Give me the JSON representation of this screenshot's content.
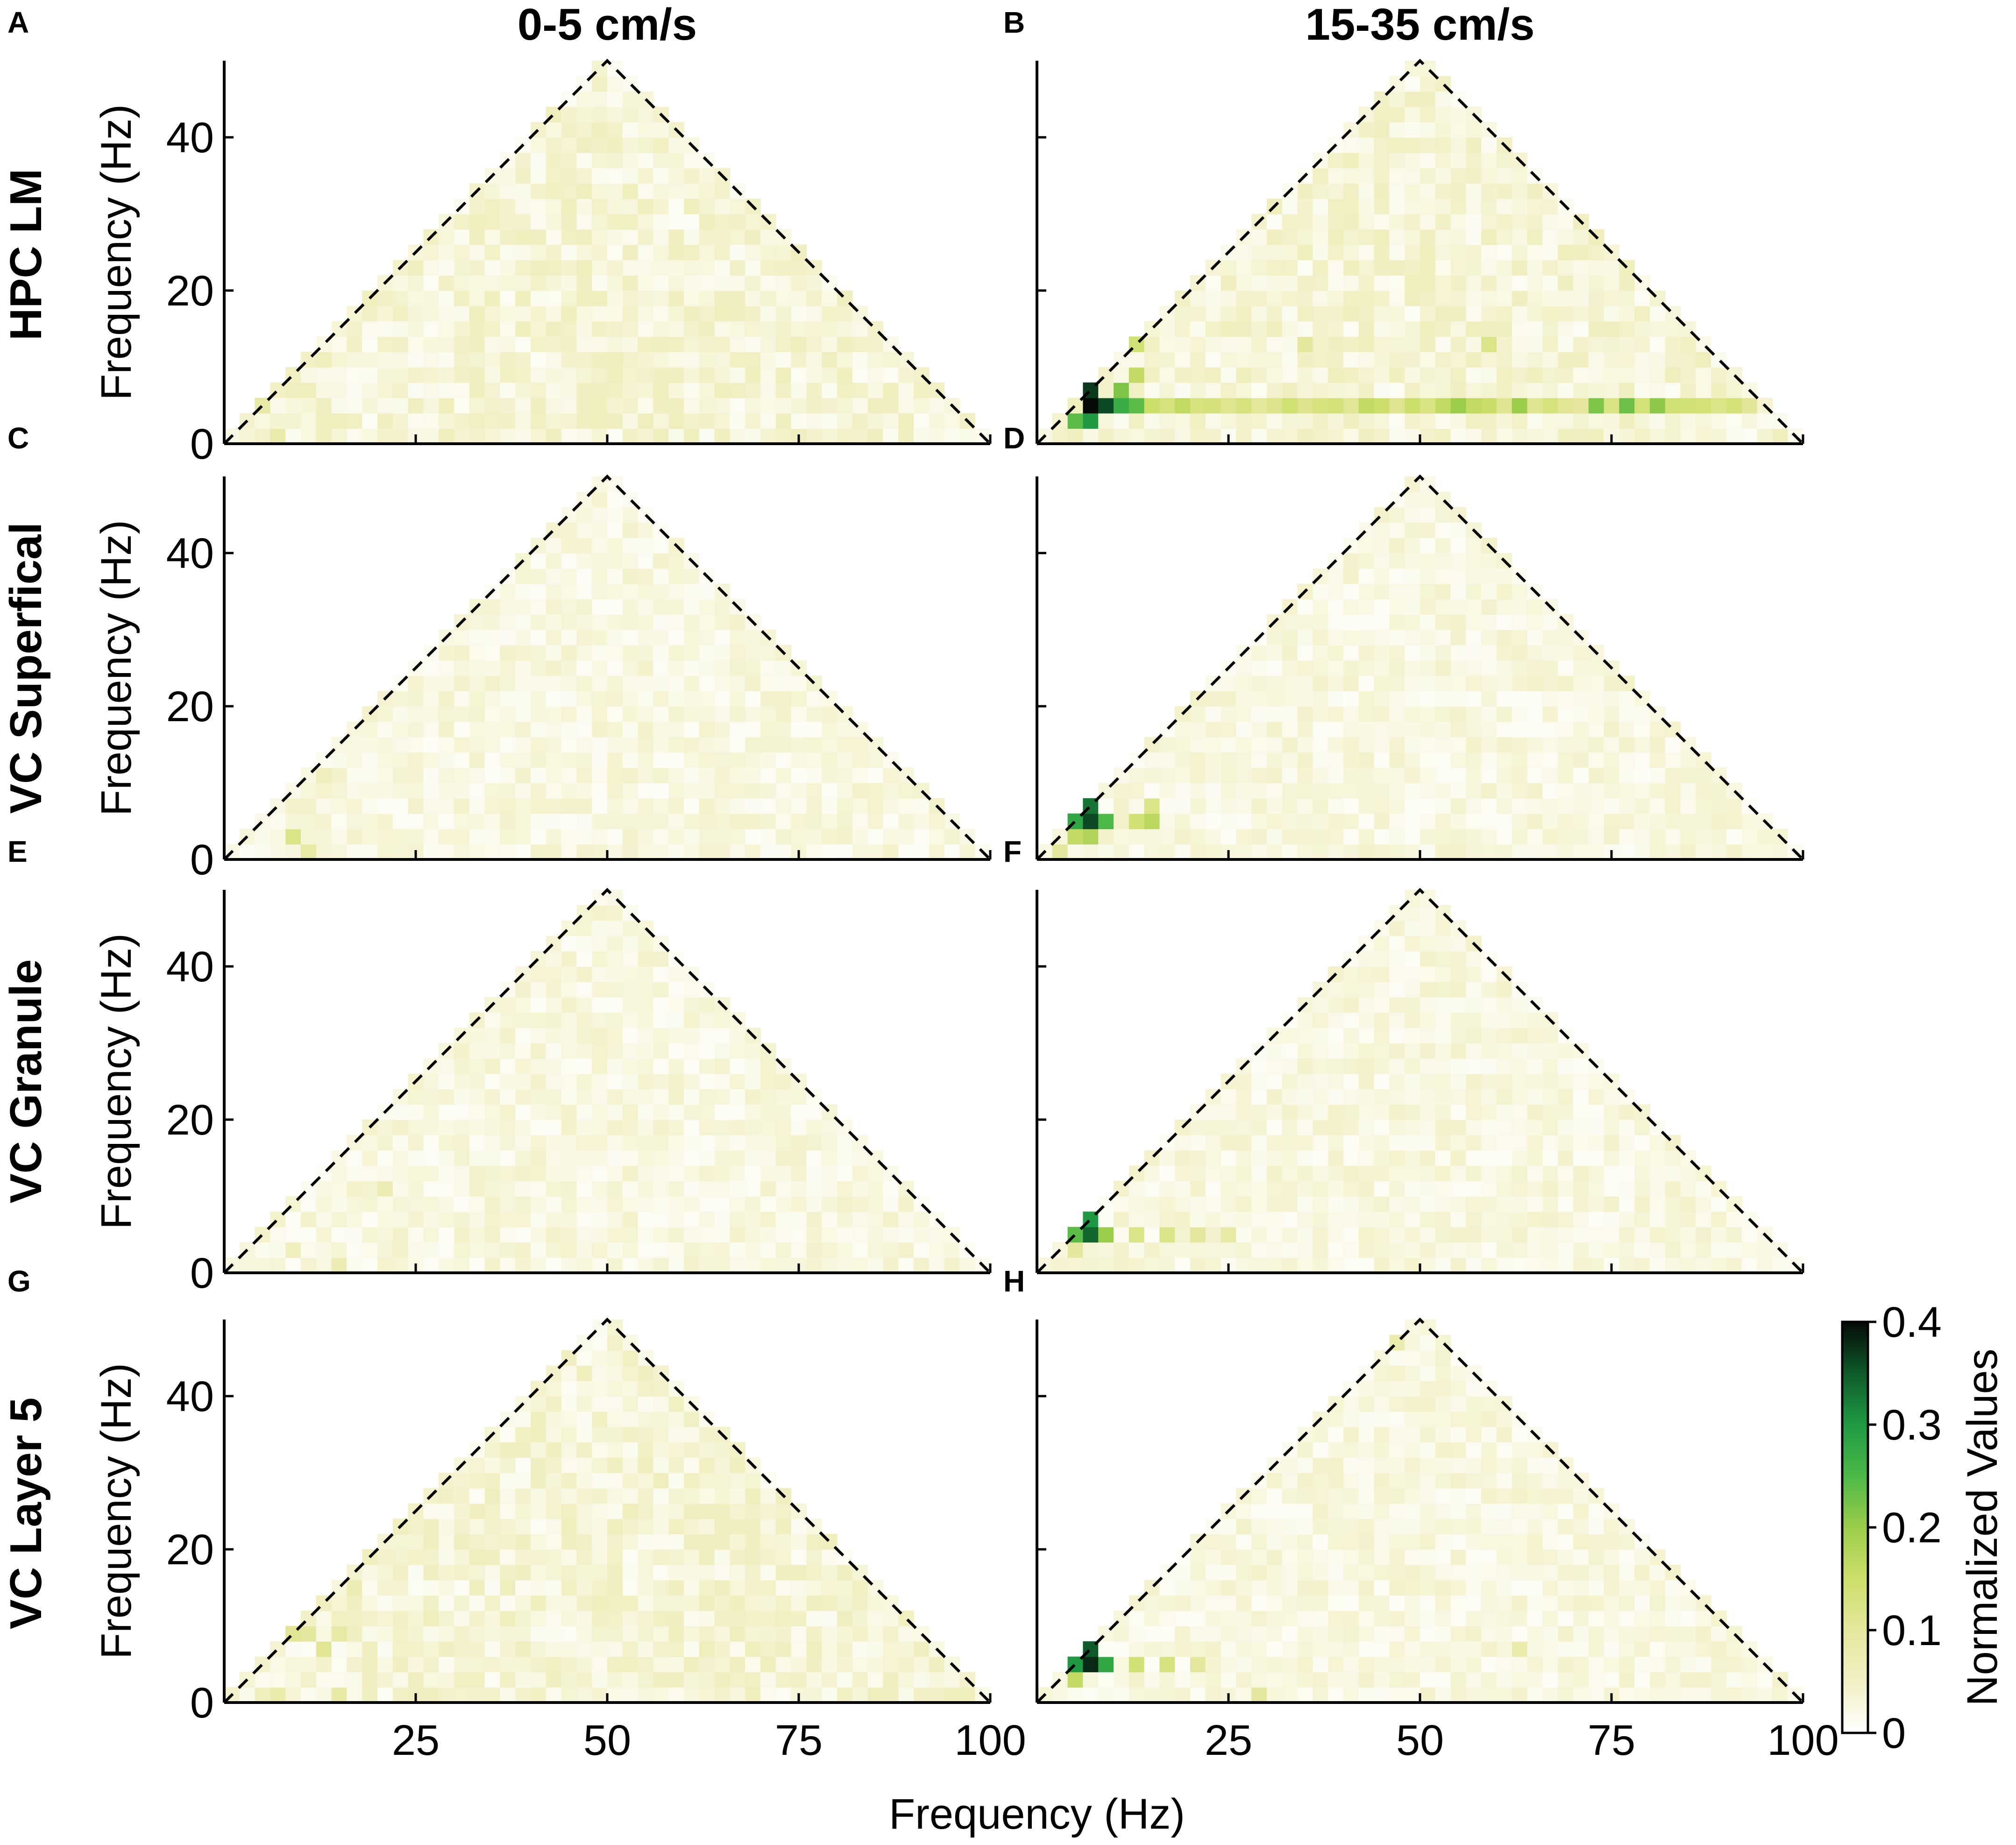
{
  "figure": {
    "column_titles": [
      "0-5 cm/s",
      "15-35 cm/s"
    ],
    "row_titles": [
      "HPC LM",
      "VC Superfical",
      "VC Granule",
      "VC Layer 5"
    ],
    "x_axis_label": "Frequency (Hz)",
    "y_axis_label": "Frequency (Hz)"
  },
  "colorbar": {
    "label": "Normalized Values",
    "ticks": [
      "0",
      "0.1",
      "0.2",
      "0.3",
      "0.4"
    ],
    "range": [
      0,
      0.4
    ],
    "colors": [
      "#ffffff",
      "#f2f0c4",
      "#e6e79e",
      "#cddf6a",
      "#9ccd4a",
      "#4cb848",
      "#1f9a43",
      "#0f5a2a",
      "#050a06"
    ]
  },
  "chart_data": [
    {
      "type": "heatmap",
      "panel": "A",
      "row": "HPC LM",
      "speed": "0-5 cm/s",
      "xlim": [
        0,
        100
      ],
      "ylim": [
        0,
        50
      ],
      "xticks": [
        25,
        50,
        75,
        100
      ],
      "yticks": [
        0,
        20,
        40
      ],
      "x_tick_labels_visible": false,
      "baseline": 0.04,
      "hotspots": [
        {
          "x": 5,
          "y": 5,
          "value": 0.09
        },
        {
          "x": 7,
          "y": 1,
          "value": 0.08
        },
        {
          "x": 15,
          "y": 3,
          "value": 0.06
        },
        {
          "x": 48,
          "y": 42,
          "value": 0.06
        }
      ]
    },
    {
      "type": "heatmap",
      "panel": "B",
      "row": "HPC LM",
      "speed": "15-35 cm/s",
      "xlim": [
        0,
        100
      ],
      "ylim": [
        0,
        50
      ],
      "xticks": [
        25,
        50,
        75,
        100
      ],
      "yticks": [
        0,
        20,
        40
      ],
      "x_tick_labels_visible": false,
      "baseline": 0.04,
      "hotspots": [
        {
          "x": 7,
          "y": 5,
          "value": 0.4
        },
        {
          "x": 7,
          "y": 7,
          "value": 0.37
        },
        {
          "x": 9,
          "y": 5,
          "value": 0.36
        },
        {
          "x": 7,
          "y": 3,
          "value": 0.3
        },
        {
          "x": 5,
          "y": 3,
          "value": 0.24
        },
        {
          "x": 11,
          "y": 5,
          "value": 0.27
        },
        {
          "x": 13,
          "y": 5,
          "value": 0.24
        },
        {
          "x": 11,
          "y": 7,
          "value": 0.22
        },
        {
          "x": 13,
          "y": 9,
          "value": 0.16
        },
        {
          "x": 13,
          "y": 13,
          "value": 0.14
        },
        {
          "x": 13,
          "y": 15,
          "value": 0.14
        },
        {
          "x": 43,
          "y": 5,
          "value": 0.16
        },
        {
          "x": 55,
          "y": 5,
          "value": 0.2
        },
        {
          "x": 63,
          "y": 5,
          "value": 0.2
        },
        {
          "x": 73,
          "y": 5,
          "value": 0.22
        },
        {
          "x": 77,
          "y": 5,
          "value": 0.23
        },
        {
          "x": 81,
          "y": 5,
          "value": 0.21
        },
        {
          "x": 85,
          "y": 5,
          "value": 0.14
        },
        {
          "x": 89,
          "y": 5,
          "value": 0.12
        },
        {
          "x": 35,
          "y": 13,
          "value": 0.1
        },
        {
          "x": 59,
          "y": 13,
          "value": 0.12
        }
      ],
      "band": {
        "y": 5,
        "x_from": 15,
        "x_to": 93,
        "value": 0.13
      }
    },
    {
      "type": "heatmap",
      "panel": "C",
      "row": "VC Superfical",
      "speed": "0-5 cm/s",
      "xlim": [
        0,
        100
      ],
      "ylim": [
        0,
        50
      ],
      "xticks": [
        25,
        50,
        75,
        100
      ],
      "yticks": [
        0,
        20,
        40
      ],
      "x_tick_labels_visible": false,
      "baseline": 0.03,
      "hotspots": [
        {
          "x": 9,
          "y": 3,
          "value": 0.12
        },
        {
          "x": 11,
          "y": 1,
          "value": 0.09
        },
        {
          "x": 13,
          "y": 11,
          "value": 0.06
        }
      ]
    },
    {
      "type": "heatmap",
      "panel": "D",
      "row": "VC Superfical",
      "speed": "15-35 cm/s",
      "xlim": [
        0,
        100
      ],
      "ylim": [
        0,
        50
      ],
      "xticks": [
        25,
        50,
        75,
        100
      ],
      "yticks": [
        0,
        20,
        40
      ],
      "x_tick_labels_visible": false,
      "baseline": 0.03,
      "hotspots": [
        {
          "x": 7,
          "y": 5,
          "value": 0.36
        },
        {
          "x": 7,
          "y": 7,
          "value": 0.33
        },
        {
          "x": 5,
          "y": 5,
          "value": 0.28
        },
        {
          "x": 9,
          "y": 5,
          "value": 0.25
        },
        {
          "x": 7,
          "y": 3,
          "value": 0.18
        },
        {
          "x": 5,
          "y": 3,
          "value": 0.16
        },
        {
          "x": 13,
          "y": 5,
          "value": 0.14
        },
        {
          "x": 15,
          "y": 5,
          "value": 0.17
        },
        {
          "x": 15,
          "y": 7,
          "value": 0.12
        },
        {
          "x": 3,
          "y": 1,
          "value": 0.1
        }
      ]
    },
    {
      "type": "heatmap",
      "panel": "E",
      "row": "VC Granule",
      "speed": "0-5 cm/s",
      "xlim": [
        0,
        100
      ],
      "ylim": [
        0,
        50
      ],
      "xticks": [
        25,
        50,
        75,
        100
      ],
      "yticks": [
        0,
        20,
        40
      ],
      "x_tick_labels_visible": false,
      "baseline": 0.03,
      "hotspots": [
        {
          "x": 21,
          "y": 11,
          "value": 0.07
        },
        {
          "x": 15,
          "y": 1,
          "value": 0.07
        },
        {
          "x": 9,
          "y": 3,
          "value": 0.06
        }
      ]
    },
    {
      "type": "heatmap",
      "panel": "F",
      "row": "VC Granule",
      "speed": "15-35 cm/s",
      "xlim": [
        0,
        100
      ],
      "ylim": [
        0,
        50
      ],
      "xticks": [
        25,
        50,
        75,
        100
      ],
      "yticks": [
        0,
        20,
        40
      ],
      "x_tick_labels_visible": false,
      "baseline": 0.03,
      "hotspots": [
        {
          "x": 7,
          "y": 5,
          "value": 0.34
        },
        {
          "x": 7,
          "y": 7,
          "value": 0.3
        },
        {
          "x": 5,
          "y": 5,
          "value": 0.24
        },
        {
          "x": 9,
          "y": 5,
          "value": 0.2
        },
        {
          "x": 13,
          "y": 5,
          "value": 0.12
        },
        {
          "x": 17,
          "y": 5,
          "value": 0.12
        },
        {
          "x": 21,
          "y": 5,
          "value": 0.1
        },
        {
          "x": 25,
          "y": 5,
          "value": 0.09
        },
        {
          "x": 5,
          "y": 3,
          "value": 0.1
        }
      ]
    },
    {
      "type": "heatmap",
      "panel": "G",
      "row": "VC Layer 5",
      "speed": "0-5 cm/s",
      "xlim": [
        0,
        100
      ],
      "ylim": [
        0,
        50
      ],
      "xticks": [
        25,
        50,
        75,
        100
      ],
      "yticks": [
        0,
        20,
        40
      ],
      "x_tick_labels_visible": true,
      "baseline": 0.04,
      "hotspots": [
        {
          "x": 9,
          "y": 9,
          "value": 0.11
        },
        {
          "x": 11,
          "y": 9,
          "value": 0.1
        },
        {
          "x": 13,
          "y": 7,
          "value": 0.11
        },
        {
          "x": 15,
          "y": 9,
          "value": 0.09
        },
        {
          "x": 7,
          "y": 1,
          "value": 0.08
        },
        {
          "x": 15,
          "y": 1,
          "value": 0.09
        },
        {
          "x": 17,
          "y": 15,
          "value": 0.07
        }
      ]
    },
    {
      "type": "heatmap",
      "panel": "H",
      "row": "VC Layer 5",
      "speed": "15-35 cm/s",
      "xlim": [
        0,
        100
      ],
      "ylim": [
        0,
        50
      ],
      "xticks": [
        25,
        50,
        75,
        100
      ],
      "yticks": [
        0,
        20,
        40
      ],
      "x_tick_labels_visible": true,
      "baseline": 0.03,
      "hotspots": [
        {
          "x": 7,
          "y": 5,
          "value": 0.38
        },
        {
          "x": 7,
          "y": 7,
          "value": 0.35
        },
        {
          "x": 5,
          "y": 5,
          "value": 0.3
        },
        {
          "x": 9,
          "y": 5,
          "value": 0.28
        },
        {
          "x": 5,
          "y": 3,
          "value": 0.16
        },
        {
          "x": 13,
          "y": 5,
          "value": 0.14
        },
        {
          "x": 17,
          "y": 5,
          "value": 0.13
        },
        {
          "x": 21,
          "y": 5,
          "value": 0.1
        },
        {
          "x": 29,
          "y": 1,
          "value": 0.1
        },
        {
          "x": 47,
          "y": 47,
          "value": 0.08
        },
        {
          "x": 63,
          "y": 7,
          "value": 0.08
        }
      ]
    }
  ]
}
